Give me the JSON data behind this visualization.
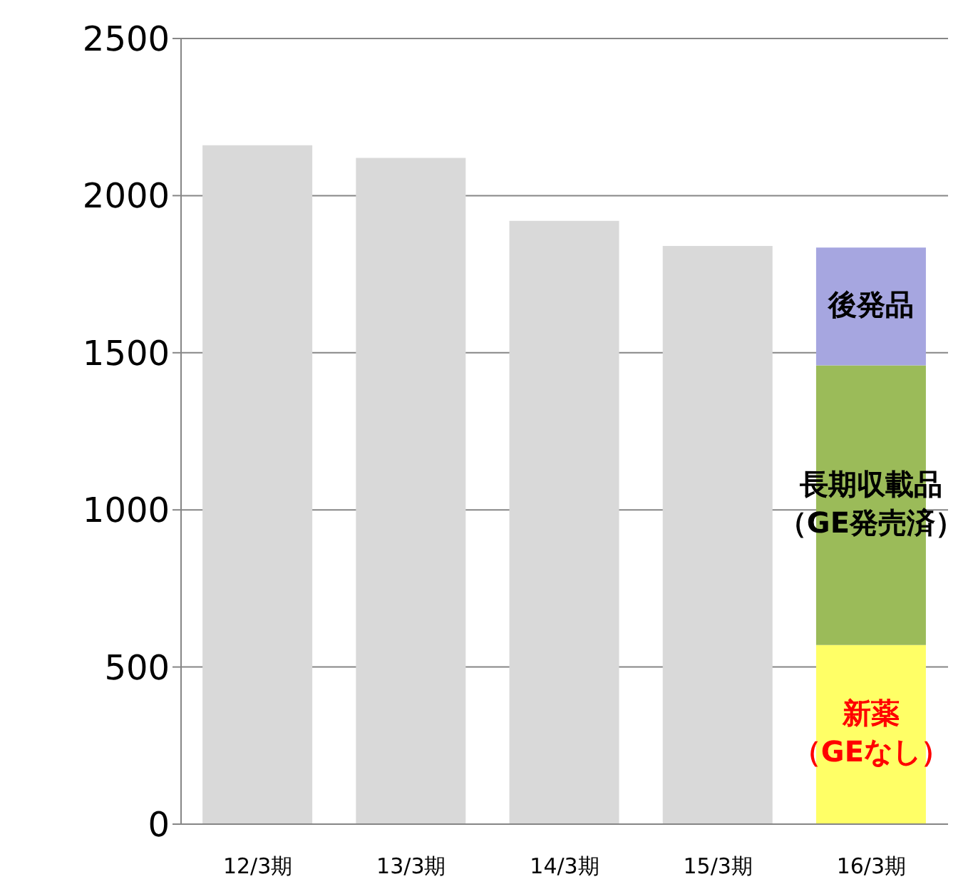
{
  "chart_data": {
    "type": "bar",
    "stacked": true,
    "categories": [
      "12/3期",
      "13/3期",
      "14/3期",
      "15/3期",
      "16/3期"
    ],
    "series": [
      {
        "color": "#d9d9d9",
        "values": [
          2160,
          2120,
          1920,
          1840,
          null
        ]
      },
      {
        "name": "新薬（GEなし）",
        "color": "#ffff66",
        "values": [
          null,
          null,
          null,
          null,
          570
        ]
      },
      {
        "name": "長期収載品（GE発売済）",
        "color": "#9bbb59",
        "values": [
          null,
          null,
          null,
          null,
          890
        ]
      },
      {
        "name": "後発品",
        "color": "#a6a6e0",
        "values": [
          null,
          null,
          null,
          null,
          375
        ]
      }
    ],
    "ylim": [
      0,
      2500
    ],
    "yticks": [
      0,
      500,
      1000,
      1500,
      2000,
      2500
    ],
    "grid": "y"
  }
}
